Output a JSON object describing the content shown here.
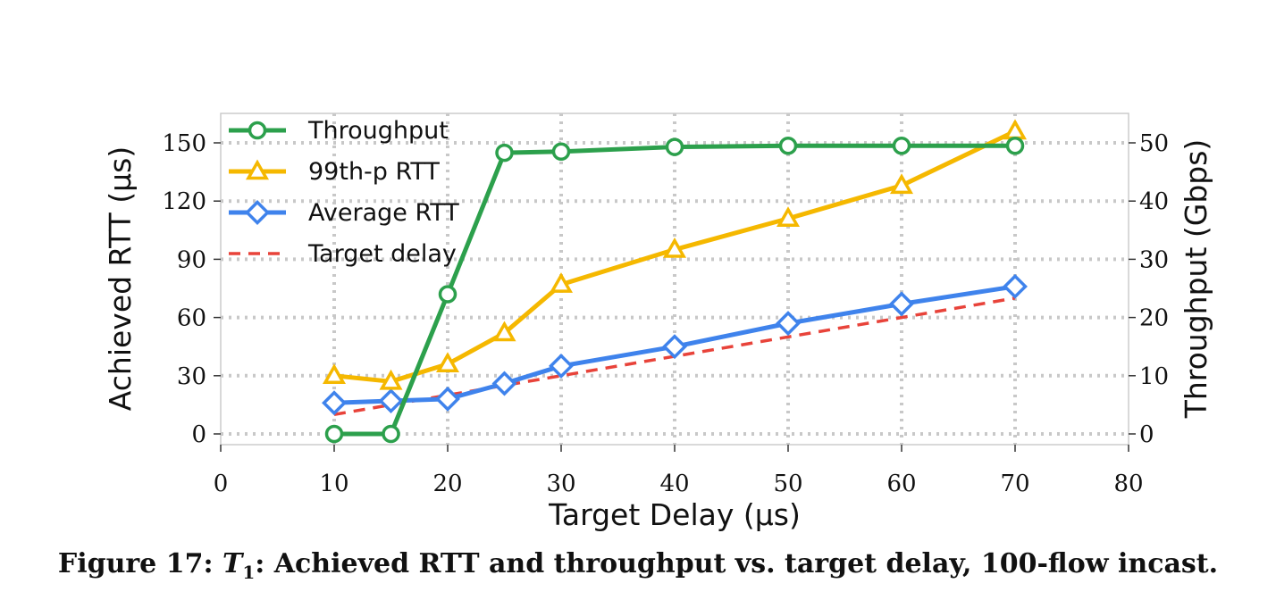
{
  "chart_data": {
    "type": "line",
    "xlabel": "Target Delay (μs)",
    "ylabel_left": "Achieved RTT (μs)",
    "ylabel_right": "Throughput (Gbps)",
    "xlim": [
      0,
      80
    ],
    "ylim_left": [
      0,
      150
    ],
    "ylim_right": [
      0,
      50
    ],
    "x_ticks": [
      "0",
      "10",
      "20",
      "30",
      "40",
      "50",
      "60",
      "70",
      "80"
    ],
    "y_ticks_left": [
      "0",
      "30",
      "60",
      "90",
      "120",
      "150"
    ],
    "y_ticks_right": [
      "0",
      "10",
      "20",
      "30",
      "40",
      "50"
    ],
    "grid": true,
    "legend_position": "top-left",
    "series": [
      {
        "name": "Throughput",
        "axis": "right",
        "color": "#2ca04c",
        "marker": "circle",
        "x": [
          10,
          15,
          20,
          25,
          30,
          40,
          50,
          60,
          70
        ],
        "values": [
          0,
          0,
          24,
          48.3,
          48.5,
          49.3,
          49.5,
          49.5,
          49.5
        ]
      },
      {
        "name": "99th-p RTT",
        "axis": "left",
        "color": "#f5b800",
        "marker": "triangle",
        "x": [
          10,
          15,
          20,
          25,
          30,
          40,
          50,
          60,
          70
        ],
        "values": [
          30,
          27,
          36,
          52,
          77,
          95,
          111,
          128,
          156
        ]
      },
      {
        "name": "Average RTT",
        "axis": "left",
        "color": "#3f83ec",
        "marker": "diamond",
        "x": [
          10,
          15,
          20,
          25,
          30,
          40,
          50,
          60,
          70
        ],
        "values": [
          16,
          17,
          18,
          26,
          35,
          45,
          57,
          67,
          76
        ]
      },
      {
        "name": "Target delay",
        "axis": "left",
        "color": "#e8433a",
        "marker": "none",
        "dashed": true,
        "x": [
          10,
          20,
          30,
          40,
          50,
          60,
          70
        ],
        "values": [
          10,
          20,
          30,
          40,
          50,
          60,
          70
        ]
      }
    ]
  },
  "caption": {
    "prefix": "Figure 17: ",
    "var": "T",
    "sub": "1",
    "text": ": Achieved RTT and throughput vs. target delay, 100-flow incast."
  }
}
